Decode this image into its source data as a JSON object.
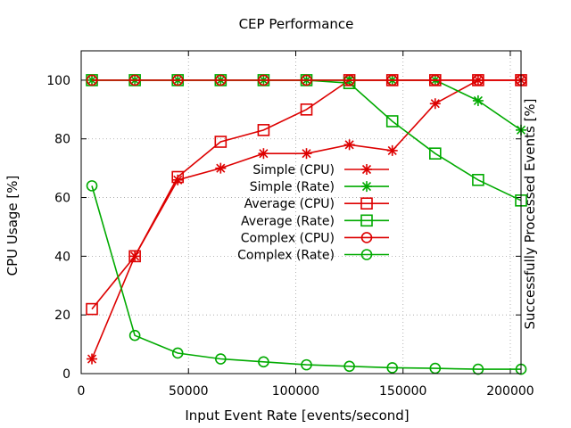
{
  "chart_data": {
    "type": "line",
    "title": "CEP Performance",
    "xlabel": "Input Event Rate [events/second]",
    "ylabel": "CPU Usage [%]",
    "y2label": "Successfully Processed Events [%]",
    "xlim": [
      0,
      205000
    ],
    "ylim": [
      0,
      110
    ],
    "xticks": [
      0,
      50000,
      100000,
      150000,
      200000
    ],
    "yticks": [
      0,
      20,
      40,
      60,
      80,
      100
    ],
    "grid": true,
    "legend_position": "center-right",
    "x": [
      5000,
      25000,
      45000,
      65000,
      85000,
      105000,
      125000,
      145000,
      165000,
      185000,
      205000
    ],
    "series": [
      {
        "name": "Simple (CPU)",
        "color": "#dd0000",
        "marker": "star",
        "values": [
          5,
          40,
          66,
          70,
          75,
          75,
          78,
          76,
          92,
          100,
          100
        ]
      },
      {
        "name": "Simple (Rate)",
        "color": "#00aa00",
        "marker": "star",
        "values": [
          100,
          100,
          100,
          100,
          100,
          100,
          100,
          100,
          100,
          93,
          83
        ]
      },
      {
        "name": "Average (CPU)",
        "color": "#dd0000",
        "marker": "square",
        "values": [
          22,
          40,
          67,
          79,
          83,
          90,
          100,
          100,
          100,
          100,
          100
        ]
      },
      {
        "name": "Average (Rate)",
        "color": "#00aa00",
        "marker": "square",
        "values": [
          100,
          100,
          100,
          100,
          100,
          100,
          99,
          86,
          75,
          66,
          59
        ]
      },
      {
        "name": "Complex (CPU)",
        "color": "#dd0000",
        "marker": "circle",
        "values": [
          100,
          100,
          100,
          100,
          100,
          100,
          100,
          100,
          100,
          100,
          100
        ]
      },
      {
        "name": "Complex (Rate)",
        "color": "#00aa00",
        "marker": "circle",
        "values": [
          64,
          13,
          7,
          5,
          4,
          3,
          2.5,
          2,
          1.8,
          1.5,
          1.5
        ]
      }
    ]
  }
}
